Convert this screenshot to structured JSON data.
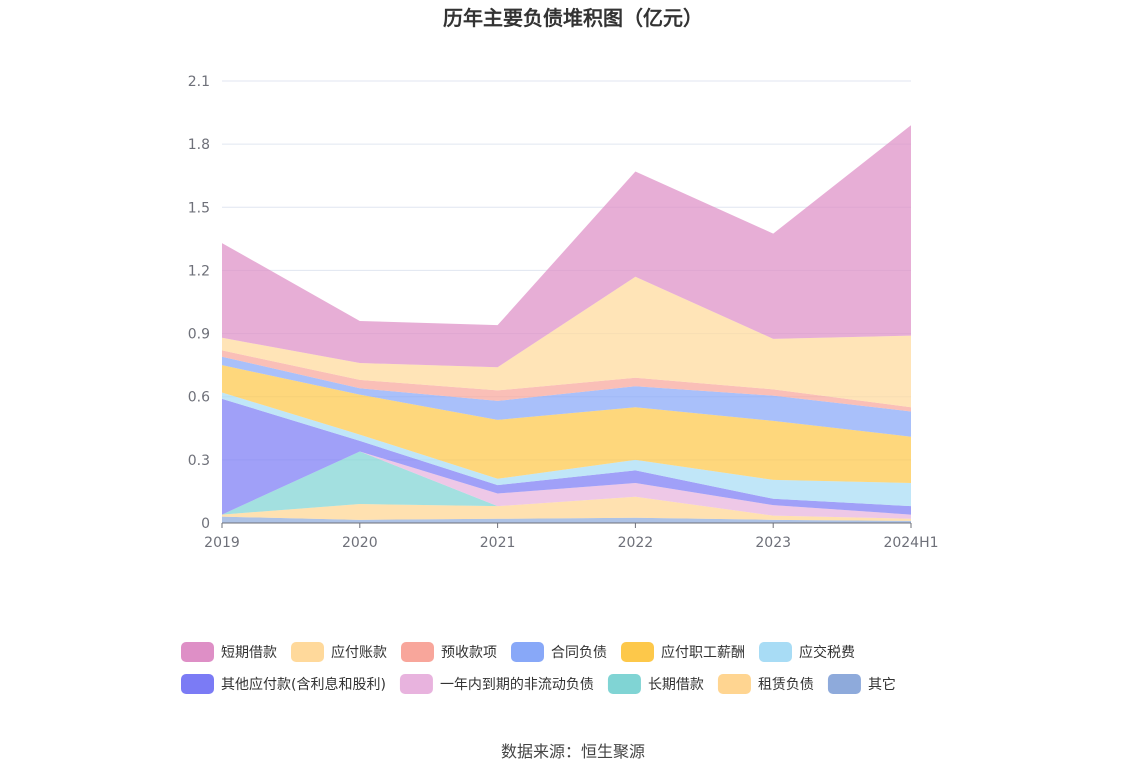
{
  "chart_data": {
    "type": "area",
    "stacked": true,
    "title": "历年主要负债堆积图（亿元）",
    "categories": [
      "2019",
      "2020",
      "2021",
      "2022",
      "2023",
      "2024H1"
    ],
    "y_ticks": [
      "0",
      "0.3",
      "0.6",
      "0.9",
      "1.2",
      "1.5",
      "1.8",
      "2.1"
    ],
    "ylim": [
      0,
      2.1
    ],
    "grid": true,
    "legend_position": "bottom",
    "series": [
      {
        "name": "其它",
        "color": "#8eaadb",
        "values": [
          0.03,
          0.015,
          0.02,
          0.025,
          0.015,
          0.01
        ]
      },
      {
        "name": "租赁负债",
        "color": "#ffd591",
        "values": [
          0.01,
          0.075,
          0.06,
          0.1,
          0.02,
          0.01
        ]
      },
      {
        "name": "长期借款",
        "color": "#80d4d4",
        "values": [
          0.0,
          0.25,
          0.0,
          0.0,
          0.0,
          0.0
        ]
      },
      {
        "name": "一年内到期的非流动负债",
        "color": "#e8b3de",
        "values": [
          0.0,
          0.0,
          0.06,
          0.065,
          0.05,
          0.02
        ]
      },
      {
        "name": "其他应付款(含利息和股利)",
        "color": "#7b7bf5",
        "values": [
          0.55,
          0.05,
          0.04,
          0.06,
          0.03,
          0.04
        ]
      },
      {
        "name": "应交税费",
        "color": "#a8dcf5",
        "values": [
          0.03,
          0.03,
          0.03,
          0.05,
          0.09,
          0.11
        ]
      },
      {
        "name": "应付职工薪酬",
        "color": "#fdc84a",
        "values": [
          0.13,
          0.19,
          0.28,
          0.25,
          0.28,
          0.22
        ]
      },
      {
        "name": "合同负债",
        "color": "#88a8f8",
        "values": [
          0.04,
          0.03,
          0.09,
          0.1,
          0.12,
          0.12
        ]
      },
      {
        "name": "预收款项",
        "color": "#f8a69b",
        "values": [
          0.03,
          0.04,
          0.05,
          0.04,
          0.03,
          0.02
        ]
      },
      {
        "name": "应付账款",
        "color": "#ffd99b",
        "values": [
          0.06,
          0.08,
          0.11,
          0.48,
          0.24,
          0.34
        ]
      },
      {
        "name": "短期借款",
        "color": "#de8fc6",
        "values": [
          0.45,
          0.2,
          0.2,
          0.5,
          0.5,
          1.0
        ]
      }
    ],
    "legend_order": [
      "短期借款",
      "应付账款",
      "预收款项",
      "合同负债",
      "应付职工薪酬",
      "应交税费",
      "其他应付款(含利息和股利)",
      "一年内到期的非流动负债",
      "长期借款",
      "租赁负债",
      "其它"
    ]
  },
  "source_note": "数据来源：恒生聚源"
}
